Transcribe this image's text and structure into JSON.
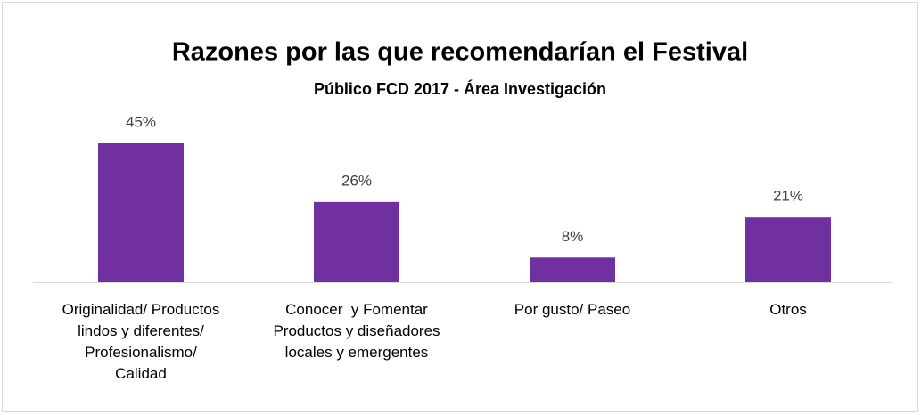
{
  "chart_data": {
    "type": "bar",
    "title": "Razones por las que recomendarían el Festival",
    "subtitle": "Público FCD 2017 - Área Investigación",
    "categories": [
      "Originalidad/ Productos\nlindos y diferentes/\nProfesionalismo/\nCalidad",
      "Conocer  y Fomentar\nProductos y diseñadores\nlocales y emergentes",
      "Por gusto/ Paseo",
      "Otros"
    ],
    "values": [
      45,
      26,
      8,
      21
    ],
    "value_labels": [
      "45%",
      "26%",
      "8%",
      "21%"
    ],
    "color": "#7030a0"
  }
}
